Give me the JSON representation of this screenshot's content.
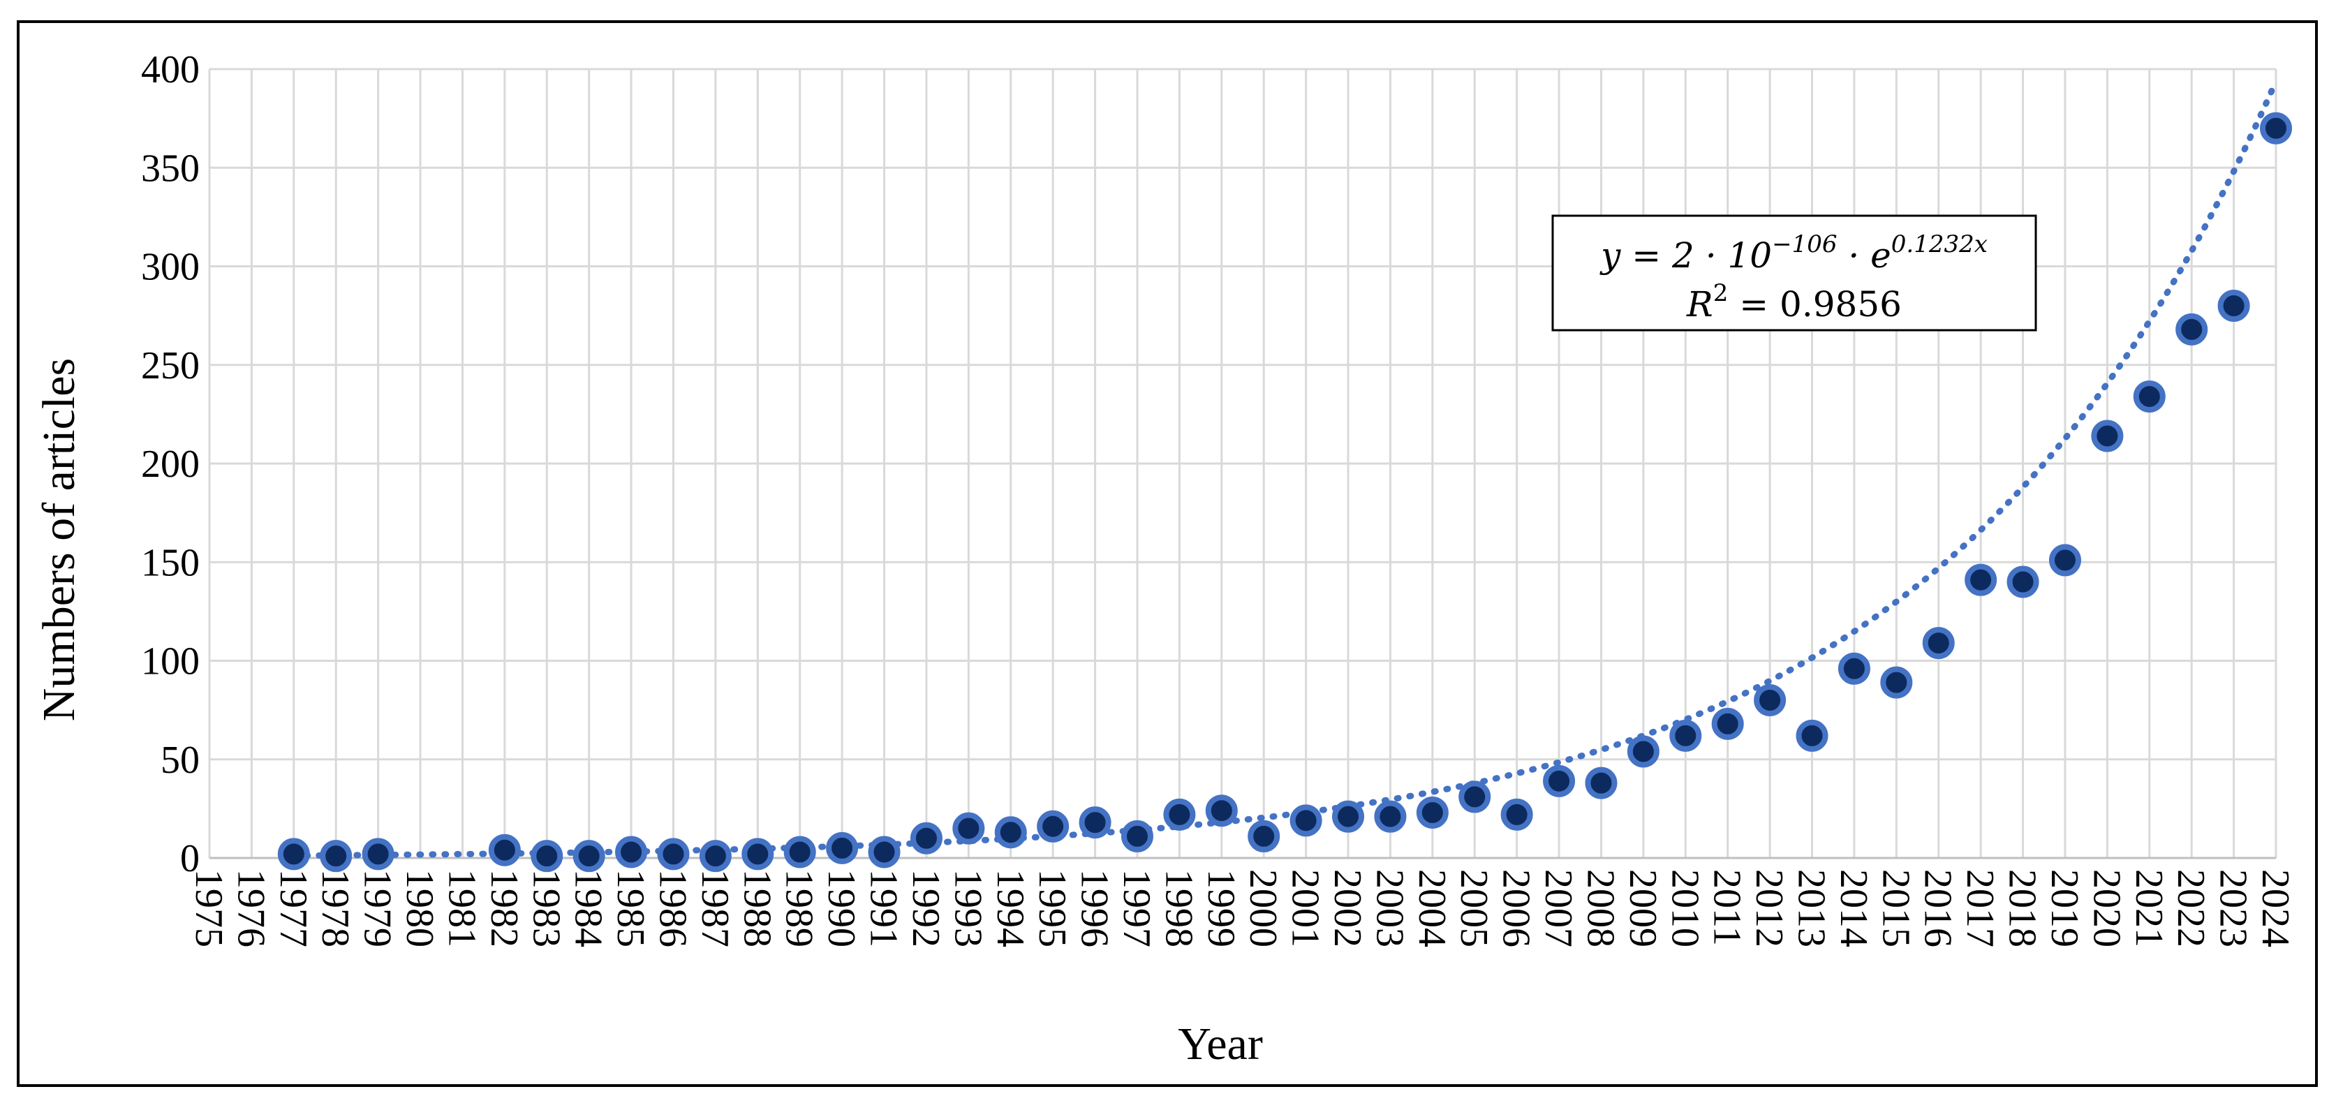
{
  "chart_data": {
    "type": "scatter",
    "title": "",
    "xlabel": "Year",
    "ylabel": "Numbers of articles",
    "ylim": [
      0,
      400
    ],
    "yticks": [
      "0",
      "50",
      "100",
      "150",
      "200",
      "250",
      "300",
      "350",
      "400"
    ],
    "categories": [
      "1975",
      "1976",
      "1977",
      "1978",
      "1979",
      "1980",
      "1981",
      "1982",
      "1983",
      "1984",
      "1985",
      "1986",
      "1987",
      "1988",
      "1989",
      "1990",
      "1991",
      "1992",
      "1993",
      "1994",
      "1995",
      "1996",
      "1997",
      "1998",
      "1999",
      "2000",
      "2001",
      "2002",
      "2003",
      "2004",
      "2005",
      "2006",
      "2007",
      "2008",
      "2009",
      "2010",
      "2011",
      "2012",
      "2013",
      "2014",
      "2015",
      "2016",
      "2017",
      "2018",
      "2019",
      "2020",
      "2021",
      "2022",
      "2023",
      "2024"
    ],
    "series": [
      {
        "points": [
          {
            "x": 1977,
            "y": 2
          },
          {
            "x": 1978,
            "y": 1
          },
          {
            "x": 1979,
            "y": 2
          },
          {
            "x": 1982,
            "y": 4
          },
          {
            "x": 1983,
            "y": 1
          },
          {
            "x": 1984,
            "y": 1
          },
          {
            "x": 1985,
            "y": 3
          },
          {
            "x": 1986,
            "y": 2
          },
          {
            "x": 1987,
            "y": 1
          },
          {
            "x": 1988,
            "y": 2
          },
          {
            "x": 1989,
            "y": 3
          },
          {
            "x": 1990,
            "y": 5
          },
          {
            "x": 1991,
            "y": 3
          },
          {
            "x": 1992,
            "y": 10
          },
          {
            "x": 1993,
            "y": 15
          },
          {
            "x": 1994,
            "y": 13
          },
          {
            "x": 1995,
            "y": 16
          },
          {
            "x": 1996,
            "y": 18
          },
          {
            "x": 1997,
            "y": 11
          },
          {
            "x": 1998,
            "y": 22
          },
          {
            "x": 1999,
            "y": 24
          },
          {
            "x": 2000,
            "y": 11
          },
          {
            "x": 2001,
            "y": 19
          },
          {
            "x": 2002,
            "y": 21
          },
          {
            "x": 2003,
            "y": 21
          },
          {
            "x": 2004,
            "y": 23
          },
          {
            "x": 2005,
            "y": 31
          },
          {
            "x": 2006,
            "y": 22
          },
          {
            "x": 2007,
            "y": 39
          },
          {
            "x": 2008,
            "y": 38
          },
          {
            "x": 2009,
            "y": 54
          },
          {
            "x": 2010,
            "y": 62
          },
          {
            "x": 2011,
            "y": 68
          },
          {
            "x": 2012,
            "y": 80
          },
          {
            "x": 2013,
            "y": 62
          },
          {
            "x": 2014,
            "y": 96
          },
          {
            "x": 2015,
            "y": 89
          },
          {
            "x": 2016,
            "y": 109
          },
          {
            "x": 2017,
            "y": 141
          },
          {
            "x": 2018,
            "y": 140
          },
          {
            "x": 2019,
            "y": 151
          },
          {
            "x": 2020,
            "y": 214
          },
          {
            "x": 2021,
            "y": 234
          },
          {
            "x": 2022,
            "y": 268
          },
          {
            "x": 2023,
            "y": 280
          },
          {
            "x": 2024,
            "y": 370
          }
        ]
      }
    ],
    "trendline": {
      "type": "exponential",
      "a": 2e-106,
      "b": 0.1232,
      "x_range": [
        1977,
        2024
      ],
      "equation_base": "y = 2 · 10",
      "equation_exponent": "−106",
      "equation_mid": " · e",
      "equation_power": "0.1232x",
      "r_squared_label": "R",
      "r_squared_power": "2",
      "r_squared_value": " = 0.9856"
    },
    "grid": true,
    "legend": "none",
    "colors": {
      "marker_fill": "#0d2a5e",
      "marker_edge": "#4472c4",
      "trendline": "#4472c4",
      "grid": "#d9d9d9"
    }
  }
}
